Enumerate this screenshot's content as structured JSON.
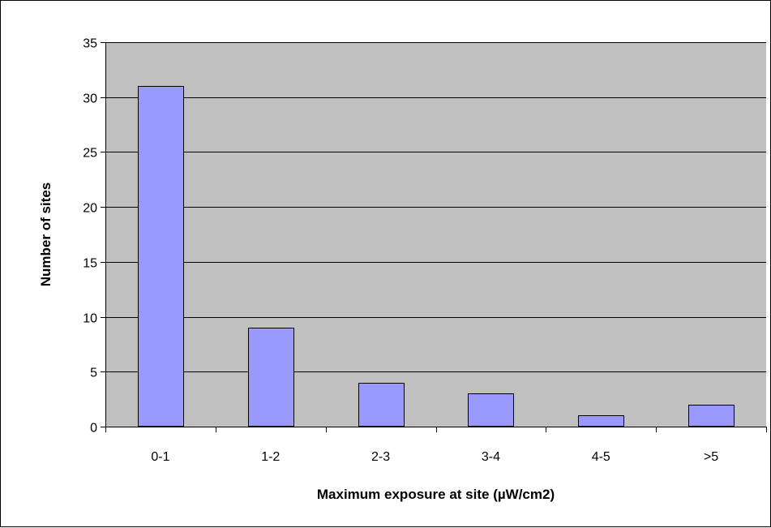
{
  "chart_data": {
    "type": "bar",
    "categories": [
      "0-1",
      "1-2",
      "2-3",
      "3-4",
      "4-5",
      ">5"
    ],
    "values": [
      31,
      9,
      4,
      3,
      1,
      2
    ],
    "title": "",
    "xlabel": "Maximum exposure at site (µW/cm2)",
    "ylabel": "Number of sites",
    "ylim": [
      0,
      35
    ],
    "yticks": [
      0,
      5,
      10,
      15,
      20,
      25,
      30,
      35
    ],
    "grid": true,
    "legend": "none",
    "colors": {
      "bar_fill": "#9999ff",
      "bar_stroke": "#000000",
      "plot_background": "#c0c0c0",
      "gridline": "#000000"
    }
  }
}
